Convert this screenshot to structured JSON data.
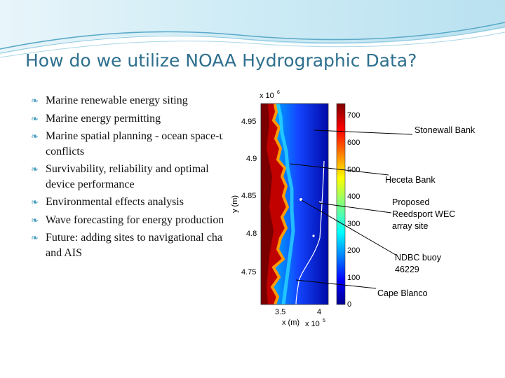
{
  "slide": {
    "title": "How do we utilize NOAA Hydrographic Data?",
    "bullets": [
      "Marine renewable energy siting",
      "Marine energy permitting",
      "Marine spatial planning - ocean space-use conflicts",
      "Survivability, reliability and optimal device performance",
      "Environmental effects analysis",
      "Wave forecasting for energy production",
      "Future: adding sites to navigational charts and AIS"
    ],
    "bullet_icon": "leaf-bullet-icon",
    "colors": {
      "title": "#2e6f8e",
      "wave_light": "#bfe3f0",
      "wave_dark": "#5aa9c8",
      "bullet": "#4a9fc0"
    }
  },
  "figure": {
    "y_exponent": "x 10",
    "y_exponent_power": "6",
    "x_exponent": "x 10",
    "x_exponent_power": "5",
    "ylabel": "y (m)",
    "xlabel": "x (m)",
    "y_ticks": [
      "4.95",
      "4.9",
      "4.85",
      "4.8",
      "4.75"
    ],
    "x_ticks": [
      "3.5",
      "4"
    ],
    "colorbar_ticks": [
      "700",
      "600",
      "500",
      "400",
      "300",
      "200",
      "100",
      "0"
    ],
    "annotations": [
      "Stonewall Bank",
      "Heceta Bank",
      "Proposed",
      "Reedsport WEC",
      "array site",
      "NDBC buoy",
      "46229",
      "Cape Blanco"
    ]
  }
}
